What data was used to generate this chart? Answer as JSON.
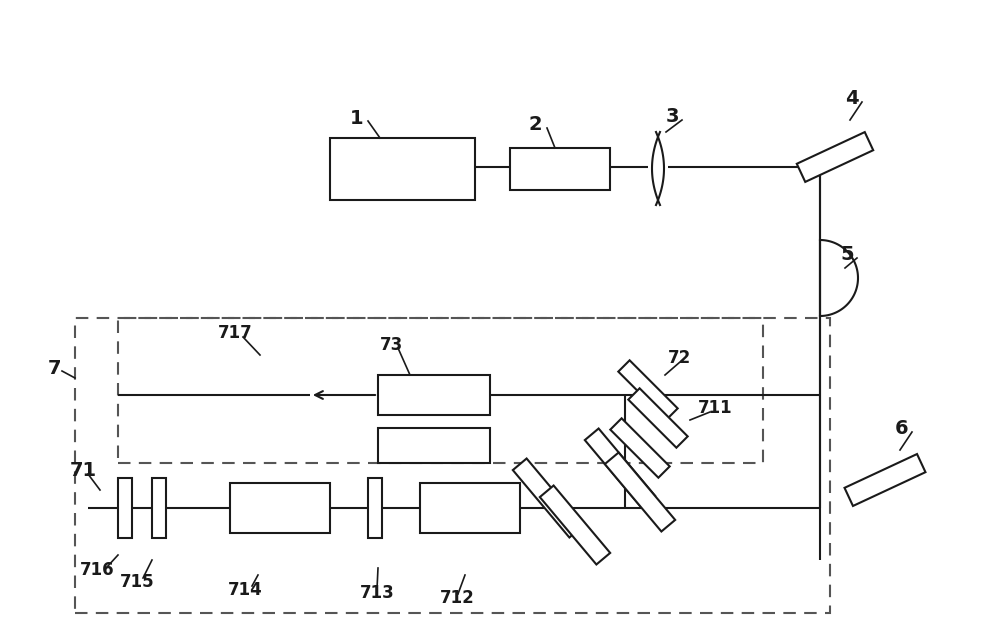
{
  "bg": "#ffffff",
  "lc": "#1a1a1a",
  "fw": 10.0,
  "fh": 6.38,
  "lw": 1.5,
  "fs_large": 14,
  "fs_small": 12
}
